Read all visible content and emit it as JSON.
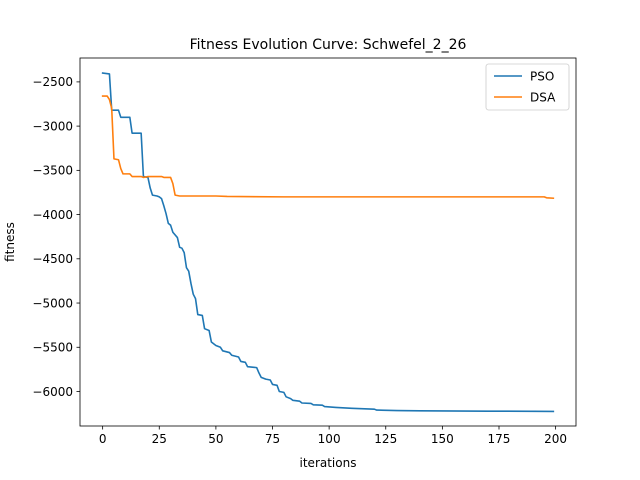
{
  "chart_data": {
    "type": "line",
    "title": "Fitness Evolution Curve: Schwefel_2_26",
    "xlabel": "iterations",
    "ylabel": "fitness",
    "xlim": [
      -10,
      209
    ],
    "ylim": [
      -6390,
      -2230
    ],
    "xticks": [
      0,
      25,
      50,
      75,
      100,
      125,
      150,
      175,
      200
    ],
    "yticks": [
      -6000,
      -5500,
      -5000,
      -4500,
      -4000,
      -3500,
      -3000,
      -2500
    ],
    "tick_labels_x": [
      "0",
      "25",
      "50",
      "75",
      "100",
      "125",
      "150",
      "175",
      "200"
    ],
    "tick_labels_y": [
      "−6000",
      "−5500",
      "−5000",
      "−4500",
      "−4000",
      "−3500",
      "−3000",
      "−2500"
    ],
    "grid": false,
    "legend_position": "top-right",
    "series": [
      {
        "name": "PSO",
        "color": "#1f77b4",
        "points": [
          [
            0,
            -2400
          ],
          [
            3,
            -2410
          ],
          [
            4,
            -2820
          ],
          [
            7,
            -2820
          ],
          [
            8,
            -2900
          ],
          [
            12,
            -2900
          ],
          [
            13,
            -3080
          ],
          [
            17,
            -3080
          ],
          [
            18,
            -3570
          ],
          [
            20,
            -3580
          ],
          [
            21,
            -3700
          ],
          [
            22,
            -3780
          ],
          [
            24,
            -3790
          ],
          [
            25,
            -3800
          ],
          [
            26,
            -3820
          ],
          [
            27,
            -3900
          ],
          [
            28,
            -3990
          ],
          [
            29,
            -4100
          ],
          [
            30,
            -4120
          ],
          [
            31,
            -4200
          ],
          [
            33,
            -4260
          ],
          [
            34,
            -4370
          ],
          [
            35,
            -4380
          ],
          [
            36,
            -4430
          ],
          [
            37,
            -4600
          ],
          [
            38,
            -4640
          ],
          [
            39,
            -4780
          ],
          [
            40,
            -4900
          ],
          [
            41,
            -4950
          ],
          [
            42,
            -5130
          ],
          [
            44,
            -5140
          ],
          [
            45,
            -5290
          ],
          [
            47,
            -5310
          ],
          [
            48,
            -5440
          ],
          [
            50,
            -5480
          ],
          [
            52,
            -5500
          ],
          [
            53,
            -5540
          ],
          [
            56,
            -5560
          ],
          [
            57,
            -5590
          ],
          [
            60,
            -5610
          ],
          [
            61,
            -5660
          ],
          [
            63,
            -5670
          ],
          [
            64,
            -5720
          ],
          [
            68,
            -5730
          ],
          [
            69,
            -5790
          ],
          [
            70,
            -5840
          ],
          [
            72,
            -5860
          ],
          [
            74,
            -5870
          ],
          [
            75,
            -5920
          ],
          [
            77,
            -5930
          ],
          [
            78,
            -6000
          ],
          [
            80,
            -6010
          ],
          [
            81,
            -6060
          ],
          [
            83,
            -6080
          ],
          [
            84,
            -6100
          ],
          [
            87,
            -6110
          ],
          [
            88,
            -6130
          ],
          [
            92,
            -6135
          ],
          [
            93,
            -6150
          ],
          [
            97,
            -6155
          ],
          [
            98,
            -6170
          ],
          [
            103,
            -6180
          ],
          [
            110,
            -6190
          ],
          [
            120,
            -6200
          ],
          [
            121,
            -6210
          ],
          [
            130,
            -6215
          ],
          [
            140,
            -6218
          ],
          [
            150,
            -6220
          ],
          [
            170,
            -6222
          ],
          [
            190,
            -6224
          ],
          [
            199,
            -6225
          ]
        ]
      },
      {
        "name": "DSA",
        "color": "#ff7f0e",
        "points": [
          [
            0,
            -2660
          ],
          [
            2,
            -2660
          ],
          [
            3,
            -2700
          ],
          [
            4,
            -2800
          ],
          [
            5,
            -3370
          ],
          [
            7,
            -3380
          ],
          [
            8,
            -3480
          ],
          [
            9,
            -3540
          ],
          [
            12,
            -3540
          ],
          [
            13,
            -3570
          ],
          [
            17,
            -3570
          ],
          [
            18,
            -3580
          ],
          [
            20,
            -3570
          ],
          [
            26,
            -3570
          ],
          [
            27,
            -3580
          ],
          [
            30,
            -3580
          ],
          [
            31,
            -3650
          ],
          [
            32,
            -3780
          ],
          [
            34,
            -3790
          ],
          [
            40,
            -3790
          ],
          [
            50,
            -3790
          ],
          [
            55,
            -3795
          ],
          [
            80,
            -3800
          ],
          [
            120,
            -3800
          ],
          [
            150,
            -3800
          ],
          [
            180,
            -3800
          ],
          [
            195,
            -3800
          ],
          [
            196,
            -3810
          ],
          [
            199,
            -3815
          ]
        ]
      }
    ]
  }
}
